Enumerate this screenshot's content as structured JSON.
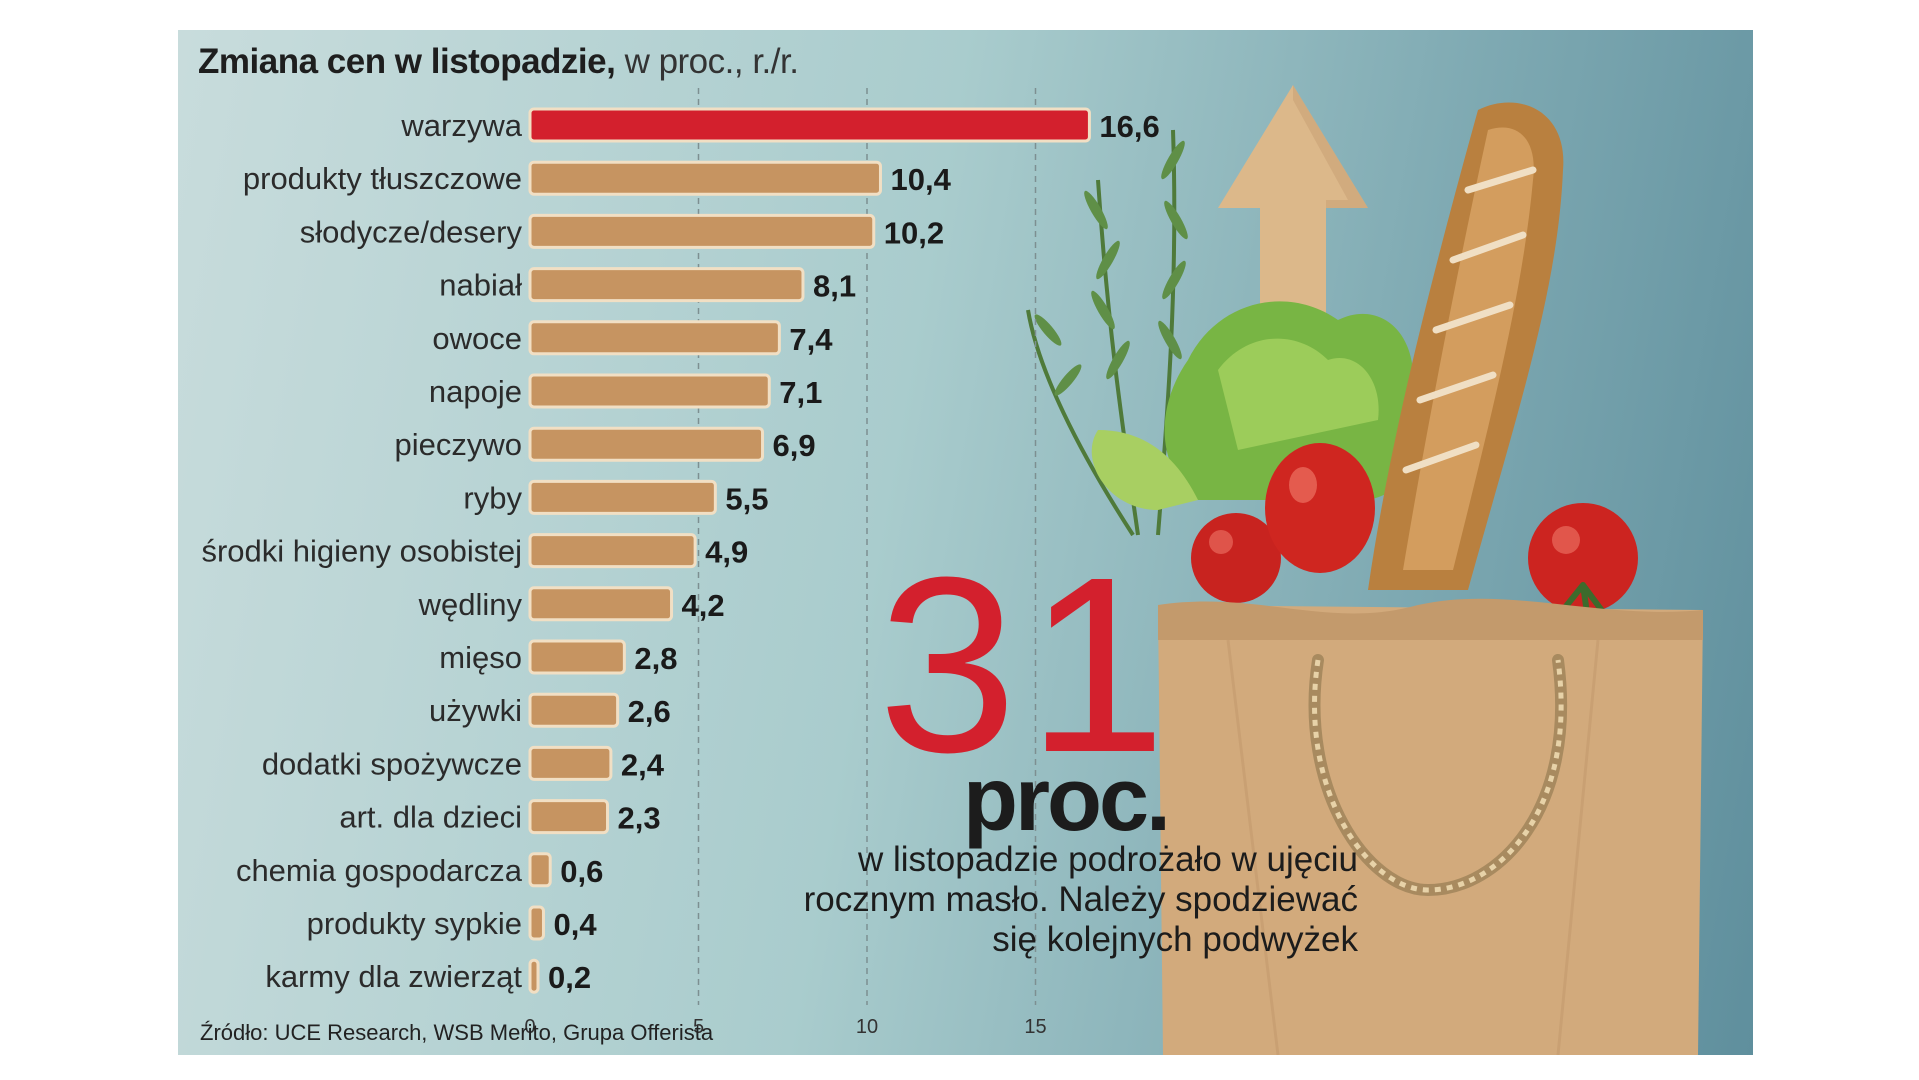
{
  "chart_data": {
    "type": "bar",
    "orientation": "horizontal",
    "title": "Zmiana cen w listopadzie,",
    "title_unit": "w proc., r./r.",
    "categories": [
      "warzywa",
      "produkty tłuszczowe",
      "słodycze/desery",
      "nabiał",
      "owoce",
      "napoje",
      "pieczywo",
      "ryby",
      "środki higieny osobistej",
      "wędliny",
      "mięso",
      "używki",
      "dodatki spożywcze",
      "art. dla dzieci",
      "chemia gospodarcza",
      "produkty sypkie",
      "karmy dla zwierząt"
    ],
    "values": [
      16.6,
      10.4,
      10.2,
      8.1,
      7.4,
      7.1,
      6.9,
      5.5,
      4.9,
      4.2,
      2.8,
      2.6,
      2.4,
      2.3,
      0.6,
      0.4,
      0.2
    ],
    "value_labels": [
      "16,6",
      "10,4",
      "10,2",
      "8,1",
      "7,4",
      "7,1",
      "6,9",
      "5,5",
      "4,9",
      "4,2",
      "2,8",
      "2,6",
      "2,4",
      "2,3",
      "0,6",
      "0,4",
      "0,2"
    ],
    "highlight_index": 0,
    "xlim": [
      0,
      15
    ],
    "xticks": [
      "0",
      "5",
      "10",
      "15"
    ],
    "xtick_values": [
      0,
      5,
      10,
      15
    ],
    "grid": "vertical dashed",
    "source": "Źródło: UCE Research, WSB Merito, Grupa Offerista"
  },
  "callout": {
    "number": "31",
    "unit": "proc.",
    "text": "w listopadzie podrożało w ujęciu rocznym masło. Należy spodziewać się kolejnych podwyżek"
  },
  "colors": {
    "highlight_bar": "#d3202d",
    "bar": "#c69461",
    "bar_outline": "#f1dfc4",
    "callout_number": "#d3202d"
  },
  "illustration": {
    "icons": [
      "arrow-up-icon",
      "paper-bag-icon",
      "baguette-icon",
      "tomato-icon",
      "lettuce-icon",
      "rosemary-icon"
    ]
  }
}
